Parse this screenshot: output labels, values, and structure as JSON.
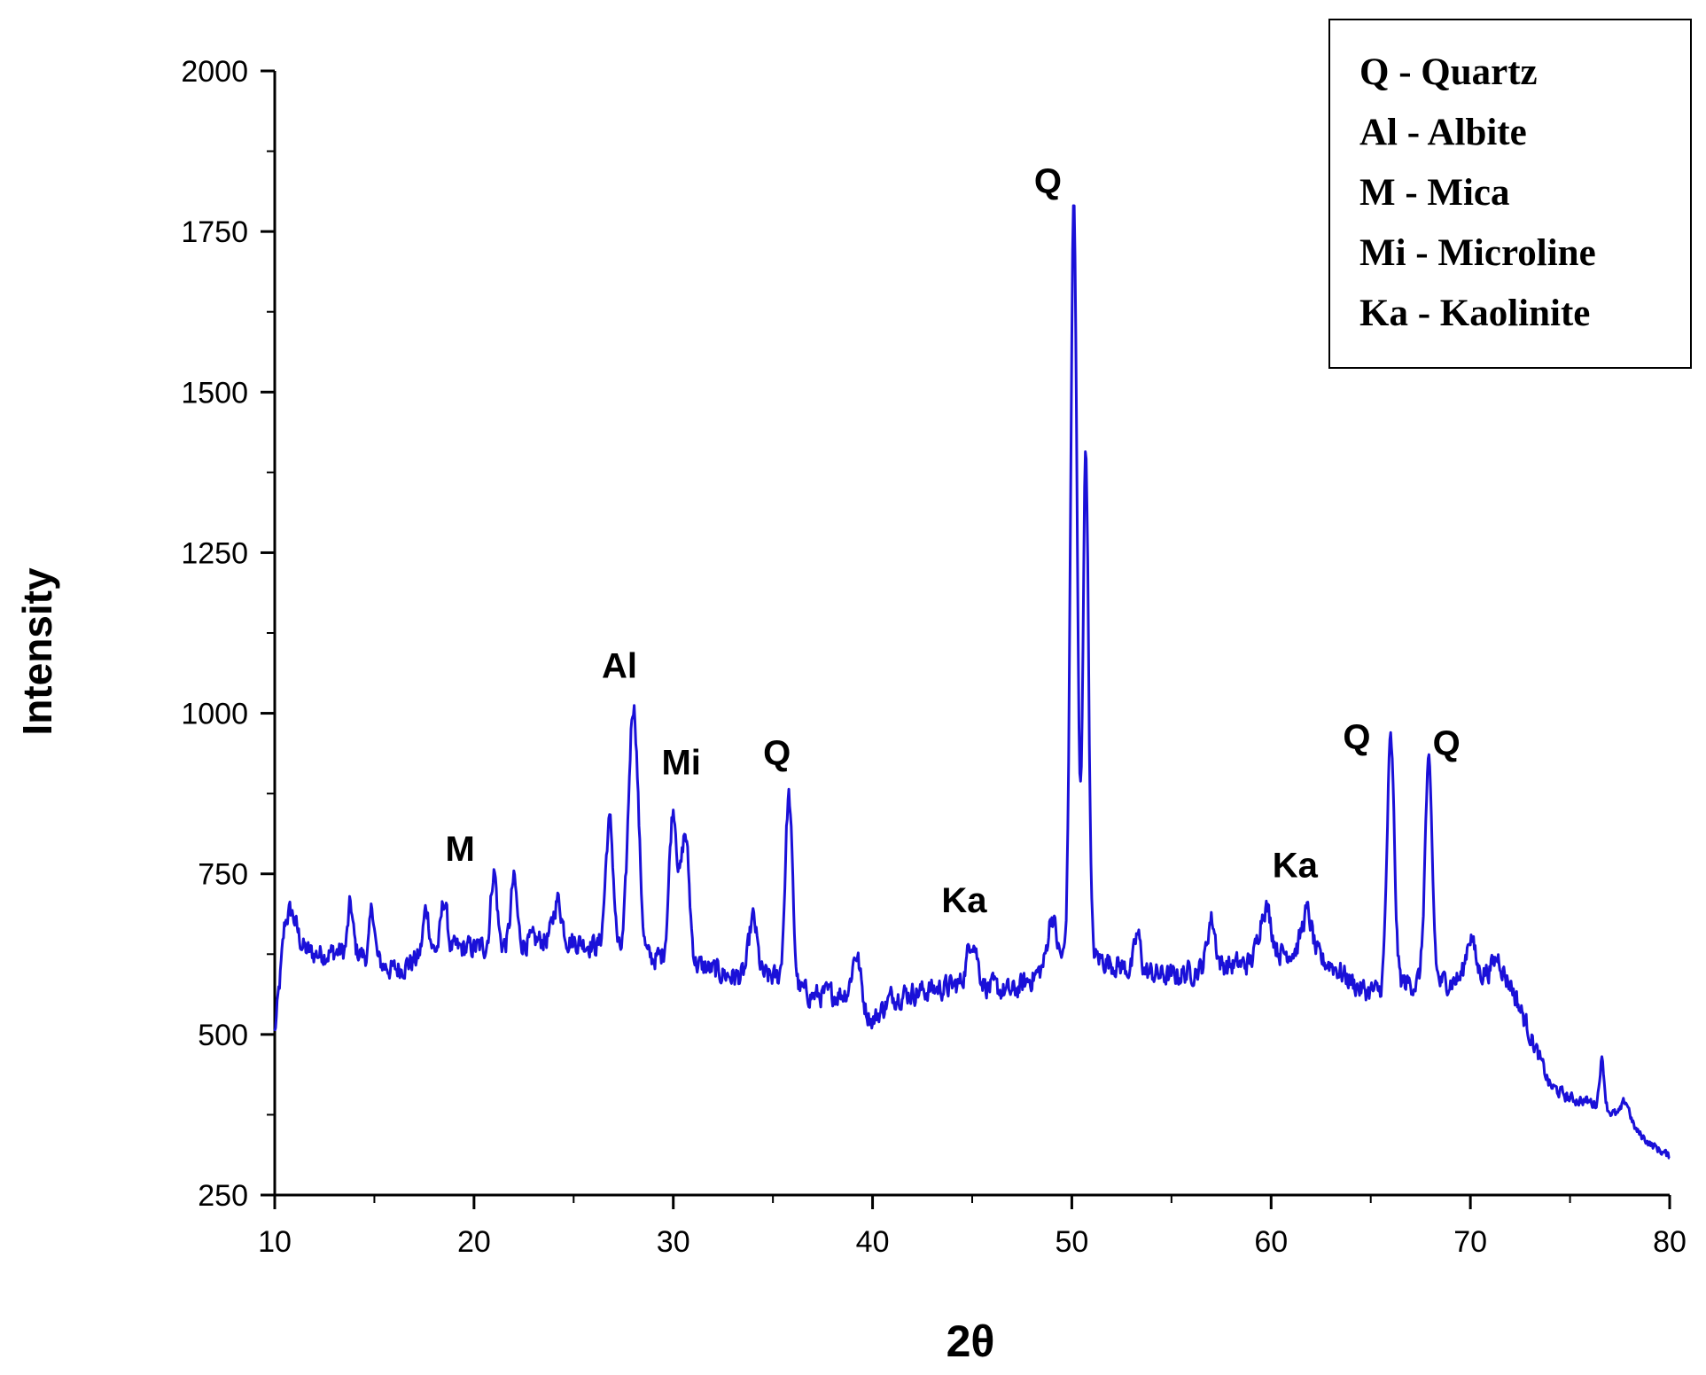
{
  "chart_data": {
    "type": "line",
    "xlabel": "2θ",
    "ylabel": "Intensity",
    "xlim": [
      10,
      80
    ],
    "ylim": [
      250,
      2000
    ],
    "x_ticks": [
      10,
      20,
      30,
      40,
      50,
      60,
      70,
      80
    ],
    "y_ticks": [
      250,
      500,
      750,
      1000,
      1250,
      1500,
      1750,
      2000
    ],
    "grid": false,
    "line_color": "#1a10d8",
    "baseline": [
      [
        10,
        500
      ],
      [
        10.5,
        640
      ],
      [
        12,
        625
      ],
      [
        14,
        630
      ],
      [
        16,
        600
      ],
      [
        18,
        630
      ],
      [
        20,
        635
      ],
      [
        22,
        640
      ],
      [
        24,
        650
      ],
      [
        26,
        640
      ],
      [
        27.5,
        610
      ],
      [
        29.3,
        620
      ],
      [
        31.5,
        605
      ],
      [
        33,
        590
      ],
      [
        35,
        590
      ],
      [
        37,
        560
      ],
      [
        39,
        565
      ],
      [
        40,
        520
      ],
      [
        41,
        560
      ],
      [
        43,
        570
      ],
      [
        45,
        580
      ],
      [
        47,
        565
      ],
      [
        48.5,
        600
      ],
      [
        49.7,
        620
      ],
      [
        51.2,
        620
      ],
      [
        53,
        600
      ],
      [
        55,
        590
      ],
      [
        57,
        605
      ],
      [
        59,
        610
      ],
      [
        61,
        630
      ],
      [
        63,
        610
      ],
      [
        64.5,
        570
      ],
      [
        65.5,
        565
      ],
      [
        66.6,
        580
      ],
      [
        67.3,
        580
      ],
      [
        68.4,
        580
      ],
      [
        70,
        590
      ],
      [
        71,
        600
      ],
      [
        72,
        580
      ],
      [
        73,
        500
      ],
      [
        74,
        420
      ],
      [
        75,
        400
      ],
      [
        76,
        395
      ],
      [
        77,
        380
      ],
      [
        78,
        360
      ],
      [
        79,
        330
      ],
      [
        80,
        310
      ]
    ],
    "peaks": [
      {
        "x": 10.8,
        "y": 690,
        "w": 0.3
      },
      {
        "x": 13.8,
        "y": 700,
        "w": 0.12
      },
      {
        "x": 14.9,
        "y": 695,
        "w": 0.12
      },
      {
        "x": 17.6,
        "y": 695,
        "w": 0.15
      },
      {
        "x": 18.5,
        "y": 710,
        "w": 0.15
      },
      {
        "x": 21.0,
        "y": 755,
        "w": 0.15
      },
      {
        "x": 22.0,
        "y": 740,
        "w": 0.15
      },
      {
        "x": 24.2,
        "y": 710,
        "w": 0.2
      },
      {
        "x": 26.8,
        "y": 830,
        "w": 0.2
      },
      {
        "x": 28.0,
        "y": 1015,
        "w": 0.25
      },
      {
        "x": 30.0,
        "y": 850,
        "w": 0.2
      },
      {
        "x": 30.6,
        "y": 810,
        "w": 0.2
      },
      {
        "x": 34.0,
        "y": 680,
        "w": 0.2
      },
      {
        "x": 35.8,
        "y": 870,
        "w": 0.18
      },
      {
        "x": 39.2,
        "y": 625,
        "w": 0.2
      },
      {
        "x": 45.0,
        "y": 650,
        "w": 0.25
      },
      {
        "x": 49.0,
        "y": 685,
        "w": 0.2
      },
      {
        "x": 50.1,
        "y": 1795,
        "w": 0.16
      },
      {
        "x": 50.7,
        "y": 1410,
        "w": 0.14
      },
      {
        "x": 53.3,
        "y": 655,
        "w": 0.15
      },
      {
        "x": 57.0,
        "y": 680,
        "w": 0.2
      },
      {
        "x": 59.7,
        "y": 700,
        "w": 0.3
      },
      {
        "x": 61.8,
        "y": 690,
        "w": 0.25
      },
      {
        "x": 66.0,
        "y": 955,
        "w": 0.18
      },
      {
        "x": 67.9,
        "y": 915,
        "w": 0.18
      },
      {
        "x": 70.0,
        "y": 655,
        "w": 0.2
      },
      {
        "x": 71.4,
        "y": 620,
        "w": 0.2
      },
      {
        "x": 76.6,
        "y": 460,
        "w": 0.12
      },
      {
        "x": 77.8,
        "y": 395,
        "w": 0.2
      }
    ],
    "noise_amplitude": 28,
    "annotations": [
      {
        "text": "M",
        "x": 19.3,
        "y": 770
      },
      {
        "text": "Al",
        "x": 27.3,
        "y": 1055
      },
      {
        "text": "Mi",
        "x": 30.4,
        "y": 905
      },
      {
        "text": "Q",
        "x": 35.2,
        "y": 920
      },
      {
        "text": "Ka",
        "x": 44.6,
        "y": 690
      },
      {
        "text": "Q",
        "x": 48.8,
        "y": 1810
      },
      {
        "text": "Ka",
        "x": 61.2,
        "y": 745
      },
      {
        "text": "Q",
        "x": 64.3,
        "y": 945
      },
      {
        "text": "Q",
        "x": 68.8,
        "y": 935
      }
    ],
    "legend": {
      "placement": "top-right",
      "entries": [
        "Q - Quartz",
        "Al - Albite",
        "M - Mica",
        "Mi - Microline",
        "Ka - Kaolinite"
      ]
    }
  }
}
